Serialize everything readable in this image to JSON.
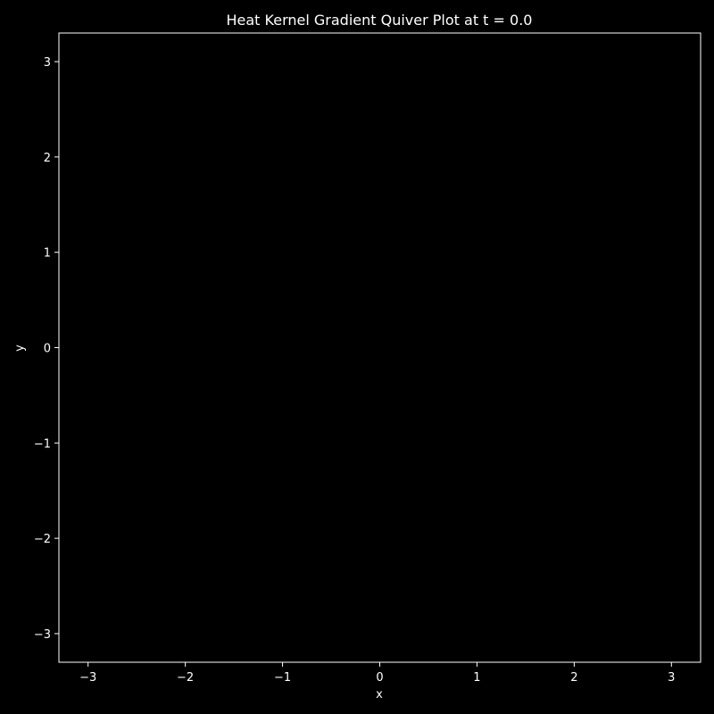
{
  "chart_data": {
    "type": "quiver",
    "title": "Heat Kernel Gradient Quiver Plot at t = 0.0",
    "xlabel": "x",
    "ylabel": "y",
    "xlim": [
      -3.3,
      3.3
    ],
    "ylim": [
      -3.3,
      3.3
    ],
    "xticks": [
      -3,
      -2,
      -1,
      0,
      1,
      2,
      3
    ],
    "yticks": [
      -3,
      -2,
      -1,
      0,
      1,
      2,
      3
    ],
    "xtick_labels": [
      "−3",
      "−2",
      "−1",
      "0",
      "1",
      "2",
      "3"
    ],
    "ytick_labels": [
      "−3",
      "−2",
      "−1",
      "0",
      "1",
      "2",
      "3"
    ],
    "grid": false,
    "arrows": [],
    "colors": {
      "background": "#000000",
      "axes_face": "#000000",
      "foreground": "#ffffff"
    }
  }
}
